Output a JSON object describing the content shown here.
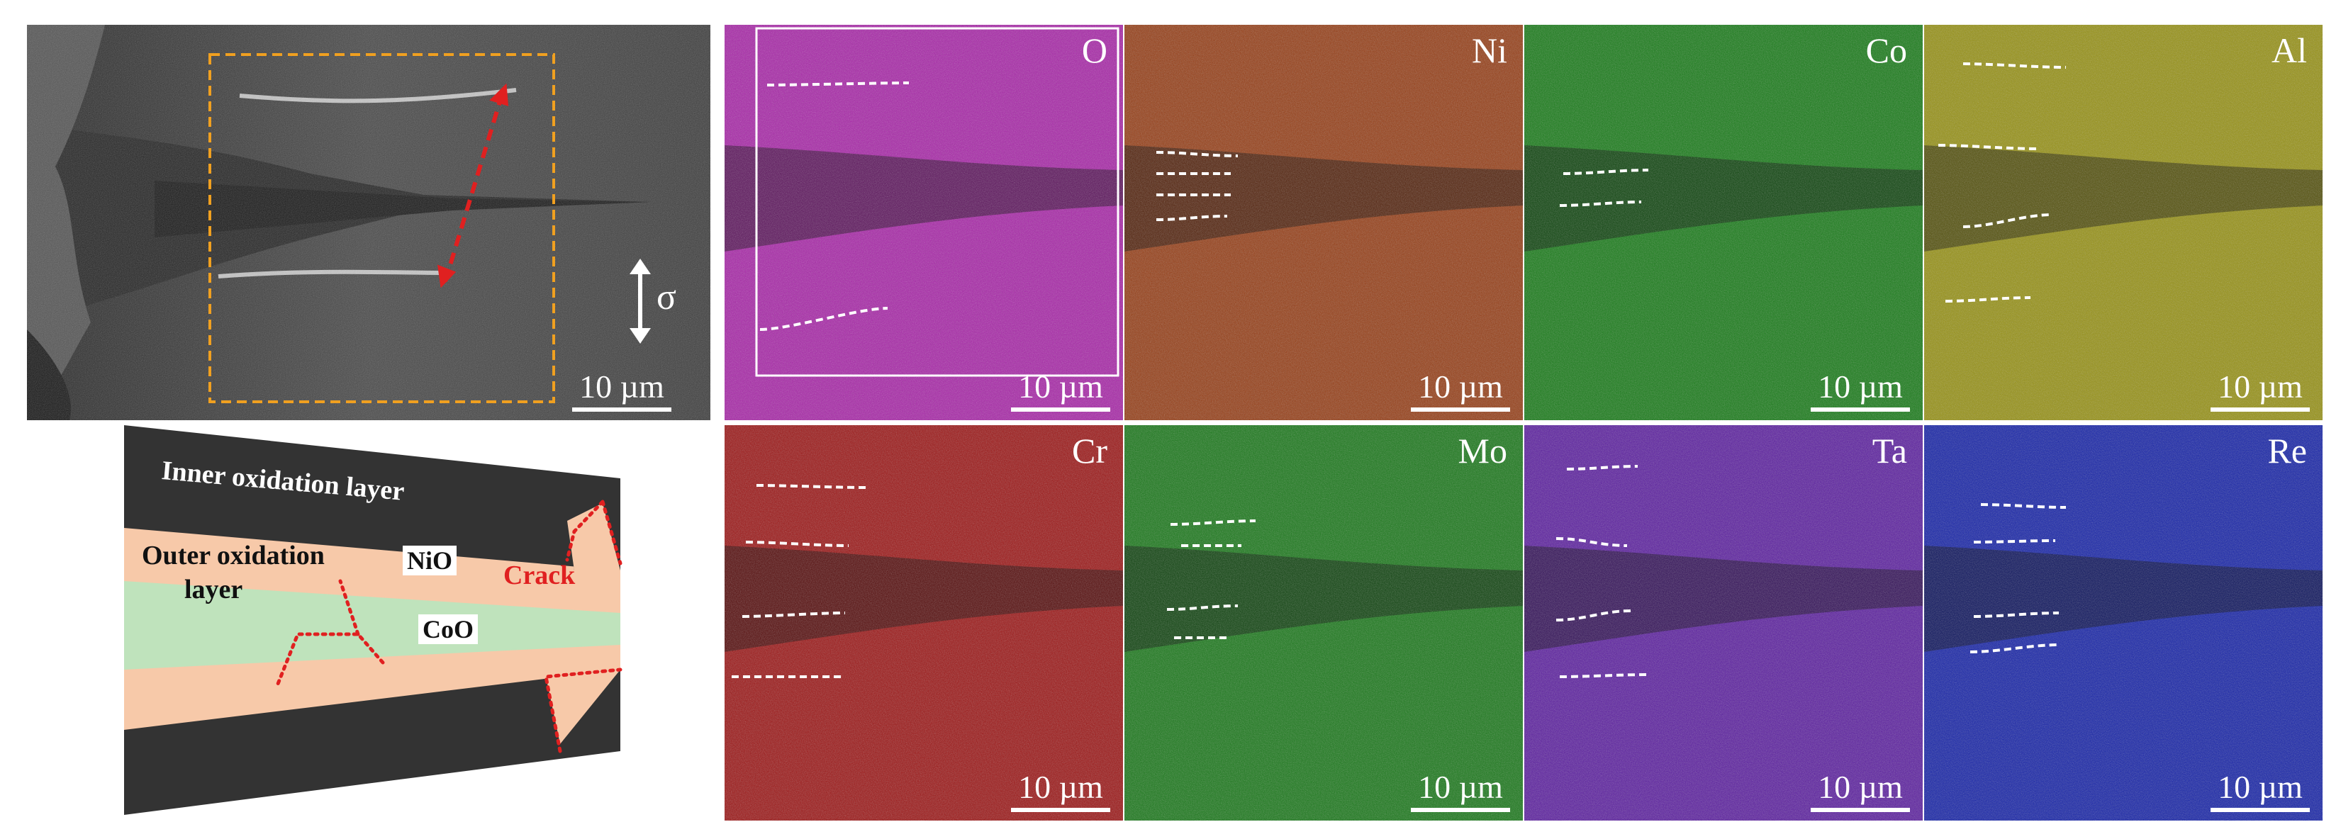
{
  "sem_panel": {
    "stress_symbol": "σ",
    "scale_text": "10 µm"
  },
  "maps": [
    {
      "element": "O",
      "color": "#e030e0",
      "scale_text": "10 µm"
    },
    {
      "element": "Ni",
      "color": "#c8521c",
      "scale_text": "10 µm"
    },
    {
      "element": "Co",
      "color": "#1fa51f",
      "scale_text": "10 µm"
    },
    {
      "element": "Al",
      "color": "#c8c21a",
      "scale_text": "10 µm"
    },
    {
      "element": "Cr",
      "color": "#d01c1c",
      "scale_text": "10 µm"
    },
    {
      "element": "Mo",
      "color": "#22a022",
      "scale_text": "10 µm"
    },
    {
      "element": "Ta",
      "color": "#7a28d6",
      "scale_text": "10 µm"
    },
    {
      "element": "Re",
      "color": "#1c2ee0",
      "scale_text": "10 µm"
    }
  ],
  "schematic": {
    "inner_layer": "Inner oxidation layer",
    "outer_layer_line1": "Outer oxidation",
    "outer_layer_line2": "layer",
    "nio": "NiO",
    "coo": "CoO",
    "crack": "Crack",
    "colors": {
      "dark": "#333333",
      "nio_band": "#f7c9a9",
      "coo_band": "#bfe3bc",
      "crack": "#e02020"
    }
  }
}
